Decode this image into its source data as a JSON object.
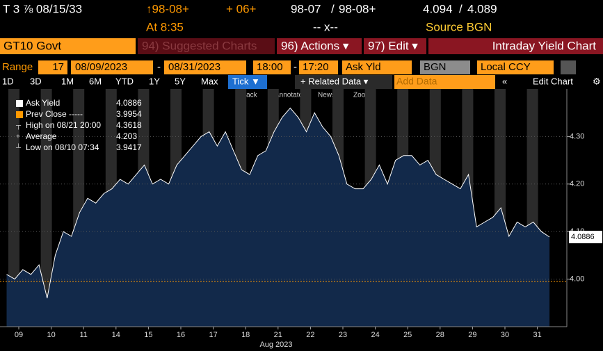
{
  "header": {
    "security": "T 3 ⅞ 08/15/33",
    "change_arrow": "↑98-08+",
    "change": "+ 06+",
    "bid_price": "98-07",
    "price_sep": "/",
    "ask_price": "98-08+",
    "bid_yield": "4.094",
    "yield_sep": "/",
    "ask_yield": "4.089",
    "time": "At 8:35",
    "size": "-- x--",
    "source": "Source BGN"
  },
  "menu": {
    "ticker": "GT10 Govt",
    "suggested": "94) Suggested Charts",
    "actions": "96) Actions ▾",
    "edit": "97) Edit ▾",
    "view": "Intraday Yield Chart"
  },
  "range": {
    "label": "Range",
    "days": "17",
    "start": "08/09/2023",
    "dash1": "-",
    "end": "08/31/2023",
    "from_time": "18:00",
    "dash2": "-",
    "to_time": "17:20",
    "field": "Ask Yld",
    "source": "BGN",
    "currency": "Local CCY"
  },
  "toolbar": {
    "periods": [
      "1D",
      "3D",
      "1M",
      "6M",
      "YTD",
      "1Y",
      "5Y",
      "Max"
    ],
    "tick": "Tick ▼",
    "related": "+ Related Data ▾",
    "add": "Add Data",
    "edit_chart": "Edit Chart",
    "tools": [
      "Track",
      "Annotate",
      "News",
      "Zoom"
    ]
  },
  "chart_data": {
    "type": "line",
    "x_label": "Aug 2023",
    "categories": [
      null,
      "09",
      null,
      null,
      null,
      "10",
      null,
      null,
      null,
      "11",
      null,
      null,
      null,
      "14",
      null,
      null,
      null,
      "15",
      null,
      null,
      null,
      "16",
      null,
      null,
      null,
      "17",
      null,
      null,
      null,
      "18",
      null,
      null,
      null,
      "21",
      null,
      null,
      null,
      "22",
      null,
      null,
      null,
      "23",
      null,
      null,
      null,
      "24",
      null,
      null,
      null,
      "25",
      null,
      null,
      null,
      "28",
      null,
      null,
      null,
      "29",
      null,
      null,
      null,
      "30",
      null,
      null,
      null,
      "31",
      null,
      null
    ],
    "series": [
      {
        "name": "Ask Yield",
        "color": "#ffffff",
        "fill": "#12294a",
        "values": [
          4.01,
          4.0,
          4.02,
          4.01,
          4.03,
          3.96,
          4.05,
          4.1,
          4.09,
          4.14,
          4.17,
          4.16,
          4.18,
          4.19,
          4.21,
          4.2,
          4.22,
          4.24,
          4.2,
          4.21,
          4.2,
          4.24,
          4.26,
          4.28,
          4.3,
          4.31,
          4.28,
          4.31,
          4.27,
          4.23,
          4.22,
          4.26,
          4.27,
          4.31,
          4.34,
          4.36,
          4.34,
          4.31,
          4.35,
          4.32,
          4.3,
          4.26,
          4.2,
          4.19,
          4.19,
          4.21,
          4.24,
          4.2,
          4.25,
          4.26,
          4.26,
          4.24,
          4.25,
          4.22,
          4.21,
          4.2,
          4.19,
          4.22,
          4.11,
          4.12,
          4.13,
          4.15,
          4.09,
          4.12,
          4.11,
          4.12,
          4.1,
          4.0886
        ]
      }
    ],
    "last_value": {
      "value": 4.0886,
      "label": "4.0886"
    },
    "prev_close": {
      "value": 3.9954,
      "color": "#ff9900"
    },
    "legend": [
      {
        "label": "Ask Yield",
        "value": "4.0886"
      },
      {
        "label": "Prev Close -----",
        "value": "3.9954"
      },
      {
        "label": "High on 08/21 20:00",
        "value": "4.3618"
      },
      {
        "label": "Average",
        "value": "4.203"
      },
      {
        "label": "Low on 08/10 07:34",
        "value": "3.9417"
      }
    ],
    "ylim": [
      3.9,
      4.4
    ],
    "yticks": [
      {
        "value": 4.0,
        "label": "4.00"
      },
      {
        "value": 4.1,
        "label": "4.10"
      },
      {
        "value": 4.2,
        "label": "4.20"
      },
      {
        "value": 4.3,
        "label": "4.30"
      }
    ]
  }
}
